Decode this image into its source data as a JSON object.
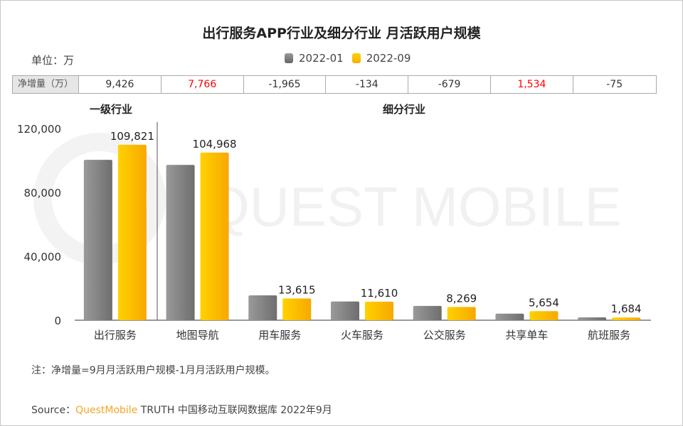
{
  "title": "出行服务APP行业及细分行业 月活跃用户规模",
  "unit": "单位：万",
  "net_row": {
    "header": "净增量（万）",
    "values": [
      "9,426",
      "7,766",
      "-1,965",
      "-134",
      "-679",
      "1,534",
      "-75"
    ],
    "highlight": [
      false,
      true,
      false,
      false,
      false,
      true,
      false
    ],
    "highlight_color": "#ff0000"
  },
  "groups": {
    "primary": "一级行业",
    "sub": "细分行业"
  },
  "note": "注：净增量=9月月活跃用户规模-1月月活跃用户规模。",
  "source": {
    "prefix": "Source：",
    "brand": "QuestMobile",
    "rest": " TRUTH 中国移动互联网数据库 2022年9月"
  },
  "watermark": "QUEST MOBILE",
  "chart_data": {
    "type": "bar",
    "title": "出行服务APP行业及细分行业 月活跃用户规模",
    "categories": [
      "出行服务",
      "地图导航",
      "用车服务",
      "火车服务",
      "公交服务",
      "共享单车",
      "航班服务"
    ],
    "series": [
      {
        "name": "2022-01",
        "color": "#808080",
        "values": [
          100395,
          97202,
          15580,
          11744,
          8948,
          4120,
          1759
        ]
      },
      {
        "name": "2022-09",
        "color": "#ffc000",
        "values": [
          109821,
          104968,
          13615,
          11610,
          8269,
          5654,
          1684
        ],
        "labels": [
          "109,821",
          "104,968",
          "13,615",
          "11,610",
          "8,269",
          "5,654",
          "1,684"
        ]
      }
    ],
    "ylim": [
      0,
      120000
    ],
    "yticks": [
      "0",
      "40,000",
      "80,000",
      "120,000"
    ],
    "ytick_values": [
      0,
      40000,
      80000,
      120000
    ],
    "legend": "top-center",
    "grid": false
  }
}
